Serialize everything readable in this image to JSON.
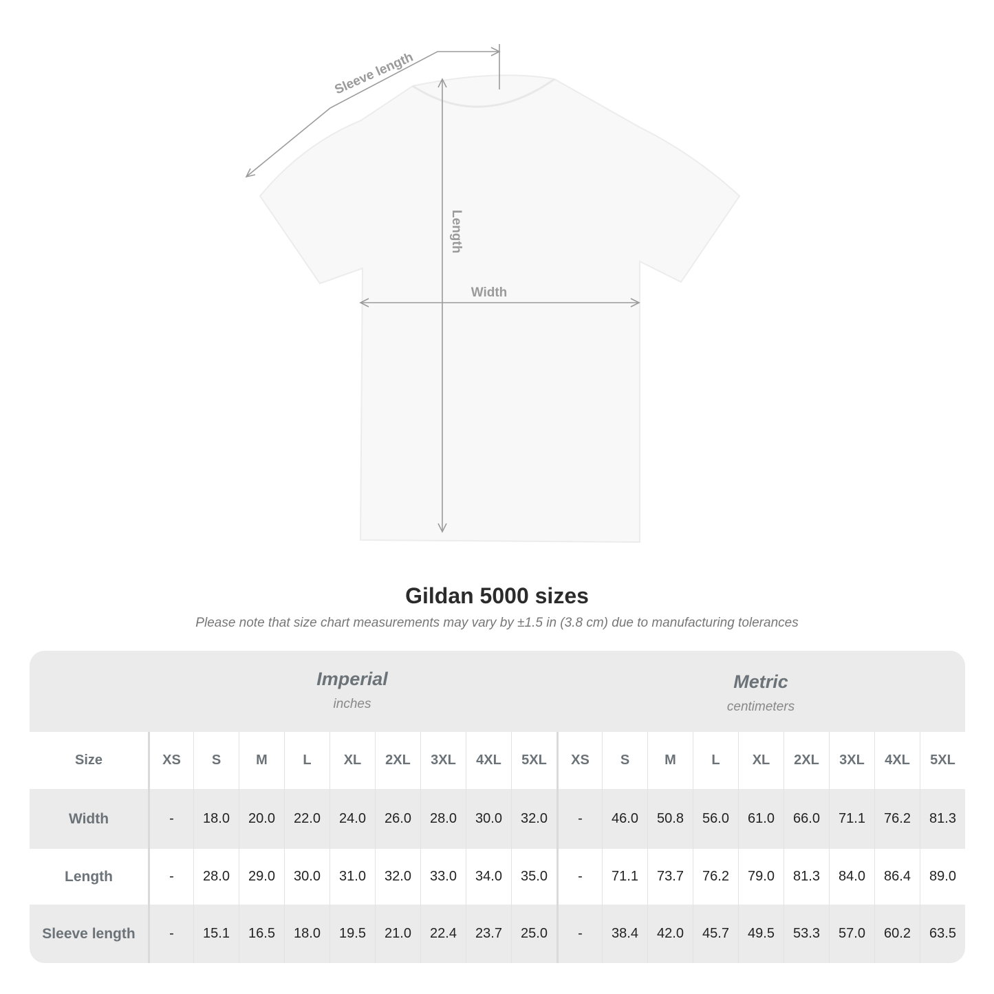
{
  "illustration": {
    "labels": {
      "sleeve": "Sleeve length",
      "length": "Length",
      "width": "Width"
    },
    "colors": {
      "shirt": "#f8f8f8",
      "measure_line": "#9a9a9a"
    }
  },
  "title": "Gildan 5000 sizes",
  "subtitle": "Please note that size chart measurements may vary by ±1.5 in (3.8 cm) due to manufacturing tolerances",
  "table": {
    "imperial": {
      "label": "Imperial",
      "unit": "inches"
    },
    "metric": {
      "label": "Metric",
      "unit": "centimeters"
    },
    "size_label": "Size",
    "sizes": [
      "XS",
      "S",
      "M",
      "L",
      "XL",
      "2XL",
      "3XL",
      "4XL",
      "5XL"
    ],
    "rows": [
      {
        "label": "Width",
        "imperial": [
          "-",
          "18.0",
          "20.0",
          "22.0",
          "24.0",
          "26.0",
          "28.0",
          "30.0",
          "32.0"
        ],
        "metric": [
          "-",
          "46.0",
          "50.8",
          "56.0",
          "61.0",
          "66.0",
          "71.1",
          "76.2",
          "81.3"
        ]
      },
      {
        "label": "Length",
        "imperial": [
          "-",
          "28.0",
          "29.0",
          "30.0",
          "31.0",
          "32.0",
          "33.0",
          "34.0",
          "35.0"
        ],
        "metric": [
          "-",
          "71.1",
          "73.7",
          "76.2",
          "79.0",
          "81.3",
          "84.0",
          "86.4",
          "89.0"
        ]
      },
      {
        "label": "Sleeve length",
        "imperial": [
          "-",
          "15.1",
          "16.5",
          "18.0",
          "19.5",
          "21.0",
          "22.4",
          "23.7",
          "25.0"
        ],
        "metric": [
          "-",
          "38.4",
          "42.0",
          "45.7",
          "49.5",
          "53.3",
          "57.0",
          "60.2",
          "63.5"
        ]
      }
    ],
    "colors": {
      "header_bg": "#ebebeb",
      "label_text": "#6b7378"
    }
  }
}
